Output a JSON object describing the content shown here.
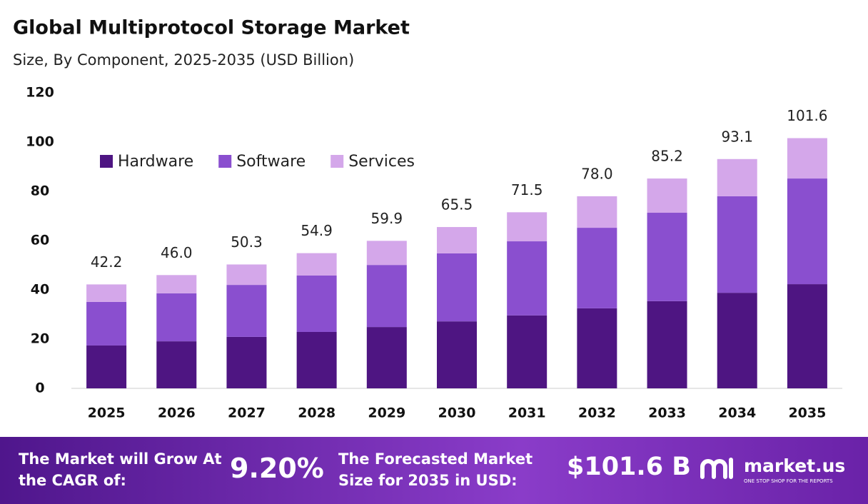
{
  "chart_data": {
    "type": "stacked_bar",
    "title": "Global Multiprotocol Storage Market",
    "subtitle": "Size, By Component, 2025-2035 (USD Billion)",
    "categories": [
      "2025",
      "2026",
      "2027",
      "2028",
      "2029",
      "2030",
      "2031",
      "2032",
      "2033",
      "2034",
      "2035"
    ],
    "series": [
      {
        "name": "Hardware",
        "color": "#4e1582",
        "values": [
          17.4,
          19.1,
          20.9,
          22.9,
          24.9,
          27.2,
          29.6,
          32.5,
          35.4,
          38.8,
          42.3
        ]
      },
      {
        "name": "Software",
        "color": "#8a4fcf",
        "values": [
          17.7,
          19.5,
          21.1,
          22.9,
          25.2,
          27.6,
          30.1,
          32.7,
          35.9,
          39.2,
          42.9
        ]
      },
      {
        "name": "Services",
        "color": "#d4a7ea",
        "values": [
          7.1,
          7.4,
          8.3,
          9.1,
          9.8,
          10.7,
          11.8,
          12.8,
          13.9,
          15.1,
          16.4
        ]
      }
    ],
    "totals": [
      42.2,
      46.0,
      50.3,
      54.9,
      59.9,
      65.5,
      71.5,
      78.0,
      85.2,
      93.1,
      101.6
    ],
    "total_labels": [
      "42.2",
      "46.0",
      "50.3",
      "54.9",
      "59.9",
      "65.5",
      "71.5",
      "78.0",
      "85.2",
      "93.1",
      "101.6"
    ],
    "ylim": [
      0,
      120
    ],
    "yticks": [
      0,
      20,
      40,
      60,
      80,
      100,
      120
    ],
    "grid": false,
    "legend": "top-left"
  },
  "footer": {
    "cagr_text": "The Market will Grow At the CAGR of:",
    "cagr_value": "9.20%",
    "forecast_text": "The Forecasted Market Size for 2035 in USD:",
    "forecast_value": "$101.6 B",
    "brand": "market.us",
    "tagline": "ONE STOP SHOP FOR THE REPORTS"
  }
}
